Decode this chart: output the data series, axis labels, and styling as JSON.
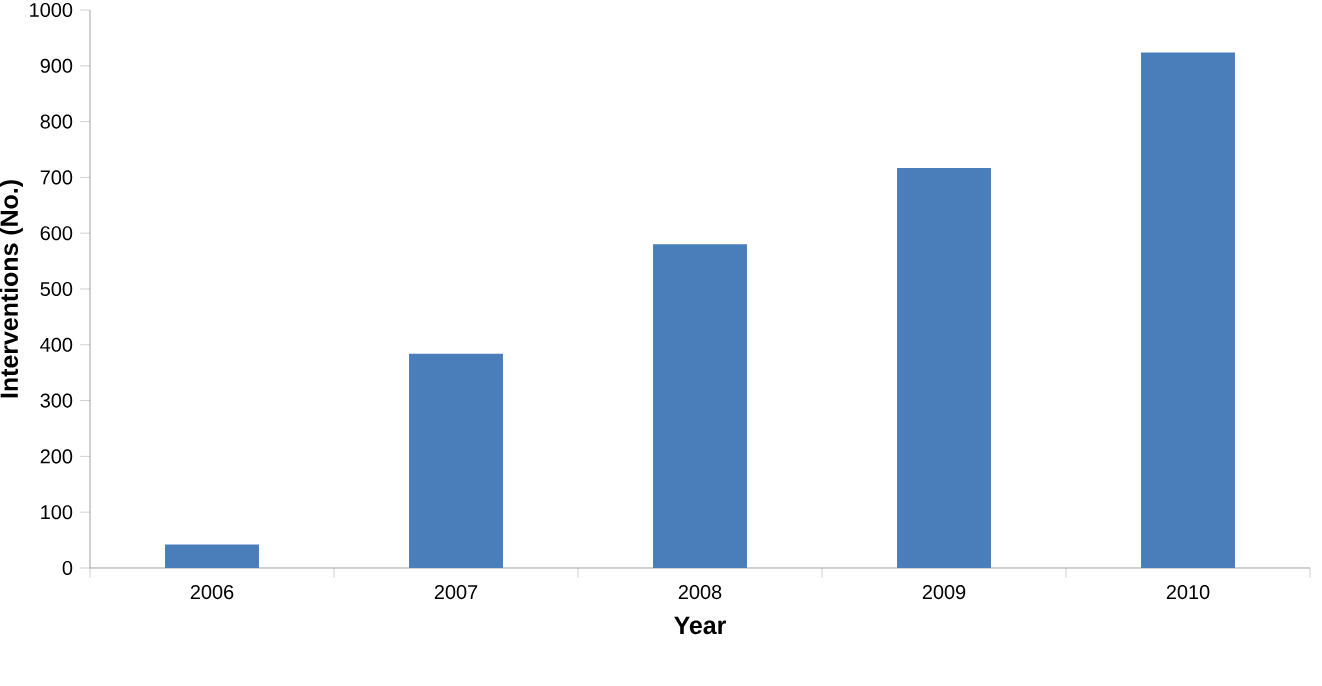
{
  "chart_data": {
    "type": "bar",
    "xlabel": "Year",
    "ylabel": "Interventions (No.)",
    "categories": [
      "2006",
      "2007",
      "2008",
      "2009",
      "2010"
    ],
    "values": [
      42,
      384,
      580,
      717,
      924
    ],
    "color": "#4a7ebb",
    "ylim": [
      0,
      1000
    ],
    "yticks": [
      0,
      100,
      200,
      300,
      400,
      500,
      600,
      700,
      800,
      900,
      1000
    ]
  }
}
